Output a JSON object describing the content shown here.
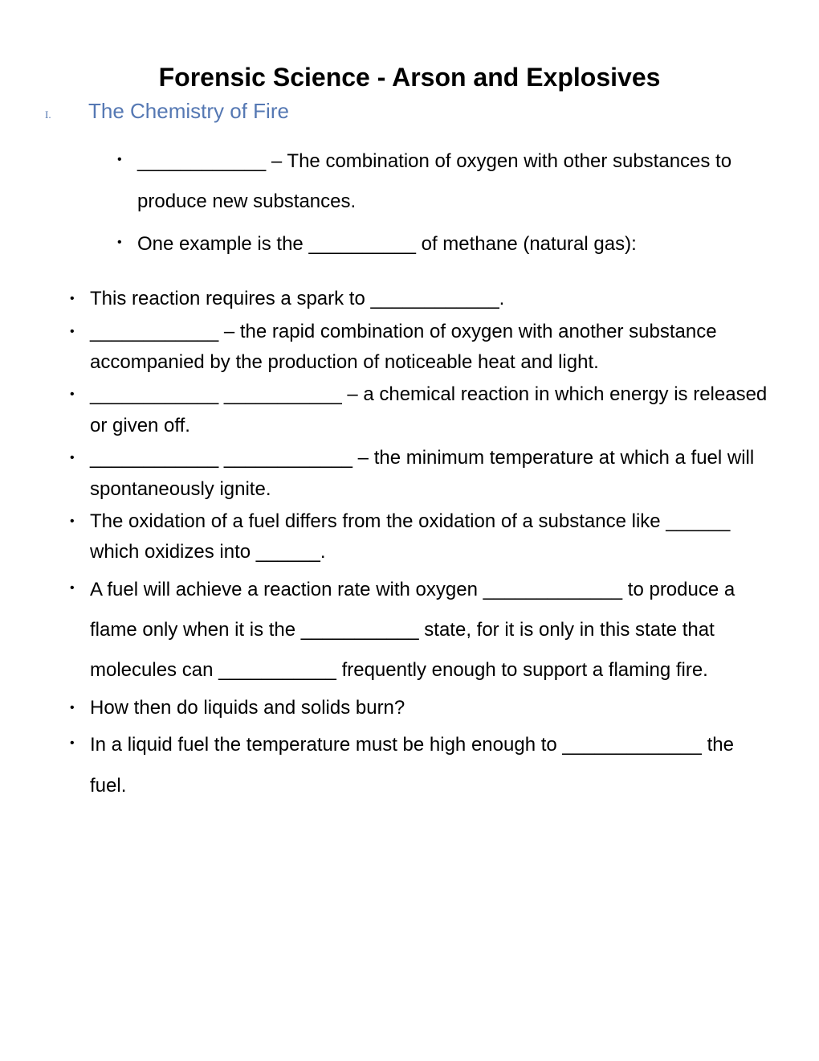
{
  "title": "Forensic Science - Arson and Explosives",
  "roman": "I.",
  "section_heading": "The Chemistry of Fire",
  "bullets": {
    "b1": "____________ – The combination of oxygen with other substances to produce new substances.",
    "b2": "One example is the __________ of methane (natural gas):",
    "b3": "This reaction requires a spark to ____________.",
    "b4": "____________ – the rapid combination of oxygen with another substance accompanied by the production of noticeable heat and light.",
    "b5": "____________ ___________ – a chemical reaction in which energy is released or given off.",
    "b6": "____________ ____________ – the minimum temperature at which a fuel will spontaneously ignite.",
    "b7": "The oxidation of a fuel differs from the oxidation of a substance like ______ which oxidizes into ______.",
    "b8": "A fuel will achieve a reaction rate with oxygen _____________ to produce a flame only when it is the ___________ state, for it is only in this state that molecules can ___________ frequently enough to support a flaming fire.",
    "b9": "How then do liquids and solids burn?",
    "b10": "In a liquid fuel the temperature must be high enough to _____________ the fuel."
  },
  "colors": {
    "heading": "#5578b3",
    "text": "#000000",
    "background": "#ffffff"
  }
}
